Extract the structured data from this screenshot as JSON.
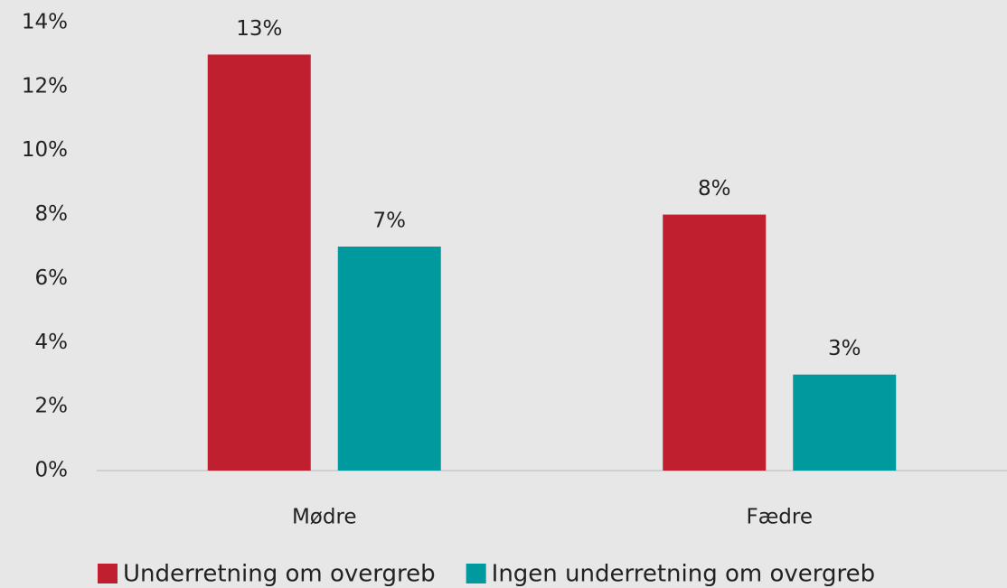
{
  "chart_data": {
    "type": "bar",
    "categories": [
      "Mødre",
      "Fædre"
    ],
    "series": [
      {
        "name": "Underretning om overgreb",
        "color": "#c01f30",
        "values": [
          13,
          8
        ],
        "value_labels": [
          "13%",
          "8%"
        ]
      },
      {
        "name": "Ingen underretning om overgreb",
        "color": "#00999e",
        "values": [
          7,
          3
        ],
        "value_labels": [
          "7%",
          "3%"
        ]
      }
    ],
    "ylim": [
      0,
      14
    ],
    "yticks": [
      {
        "value": 0,
        "label": "0%"
      },
      {
        "value": 2,
        "label": "2%"
      },
      {
        "value": 4,
        "label": "4%"
      },
      {
        "value": 6,
        "label": "6%"
      },
      {
        "value": 8,
        "label": "8%"
      },
      {
        "value": 10,
        "label": "10%"
      },
      {
        "value": 12,
        "label": "12%"
      },
      {
        "value": 14,
        "label": "14%"
      }
    ],
    "grid": false,
    "legend": "bottom"
  }
}
